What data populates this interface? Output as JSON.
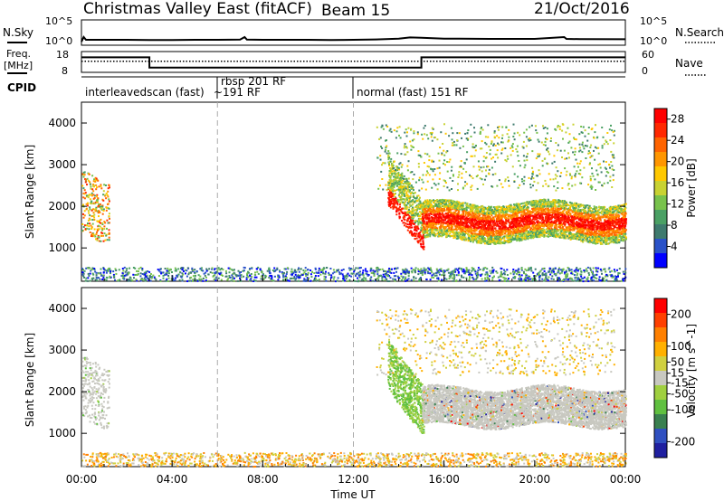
{
  "header": {
    "title": "Christmas Valley East (fitACF)",
    "beam": "Beam 15",
    "date": "21/Oct/2016"
  },
  "top_panels": {
    "nsky_label": "N.Sky",
    "nsearch_label": "N.Search",
    "nsky_ticks": [
      "10^5",
      "10^0"
    ],
    "nsearch_ticks": [
      "10^5",
      "10^0"
    ],
    "freq_label_1": "Freq.",
    "freq_label_2": "[MHz]",
    "freq_ticks": [
      "18",
      "8"
    ],
    "nave_label": "Nave",
    "nave_ticks": [
      "60",
      "0"
    ],
    "cpid_label": "CPID"
  },
  "cpid_segments": [
    {
      "label": "interleavedscan (fast)"
    },
    {
      "label": "rbsp 201 RF"
    },
    {
      "label": "~191 RF"
    },
    {
      "label": "normal (fast) 151 RF"
    }
  ],
  "colors": {
    "power": [
      "#0000ff",
      "#2a52c8",
      "#3e7a6e",
      "#4aa064",
      "#78c24c",
      "#c8d232",
      "#ffc800",
      "#ff9600",
      "#ff6400",
      "#ff2800",
      "#ff0000"
    ],
    "velocity": [
      "#2020a0",
      "#3050c0",
      "#3a8050",
      "#60c040",
      "#a0d040",
      "#c8c8c0",
      "#d0d040",
      "#ffb000",
      "#ff8000",
      "#ff4000",
      "#ff0000"
    ]
  },
  "chart_data": [
    {
      "type": "line",
      "title": "N.Sky / N.Search",
      "ylabel": "N.Sky",
      "y2label": "N.Search",
      "yscale": "log",
      "ylim": [
        1,
        100000
      ],
      "x_hours": [
        0,
        0.1,
        0.2,
        1,
        2,
        3,
        4,
        5,
        6,
        7,
        7.2,
        7.3,
        8,
        9,
        10,
        11,
        12,
        13,
        14,
        14.5,
        15,
        15.5,
        16,
        18,
        20,
        21.3,
        21.4,
        22,
        24
      ],
      "series": [
        {
          "values": [
            5,
            40,
            12,
            12,
            12,
            11,
            11,
            12,
            12,
            13,
            40,
            13,
            12,
            12,
            12,
            11,
            12,
            14,
            20,
            35,
            30,
            25,
            20,
            18,
            18,
            40,
            18,
            16,
            15
          ]
        }
      ]
    },
    {
      "type": "line",
      "ylabel": "Freq. [MHz]",
      "y2label": "Nave",
      "ylim": [
        8,
        18
      ],
      "y2lim": [
        0,
        60
      ],
      "x_hours": [
        0,
        3,
        3,
        15,
        15,
        24
      ],
      "series": [
        {
          "values": [
            15.2,
            15.2,
            10.3,
            10.3,
            15.2,
            15.2
          ]
        }
      ],
      "series2": [
        {
          "values": [
            32,
            32,
            32,
            32,
            32,
            32
          ]
        }
      ]
    },
    {
      "type": "heatmap",
      "ylabel": "Slant Range [km]",
      "colorbar_label": "Power [dB]",
      "colorbar_ticks": [
        "28",
        "24",
        "20",
        "16",
        "12",
        "8",
        "4"
      ],
      "colorbar_range": [
        0,
        30
      ],
      "xlim": [
        0,
        24
      ],
      "ylim": [
        200,
        4500
      ],
      "x_ticks": [
        "00:00",
        "04:00",
        "08:00",
        "12:00",
        "16:00",
        "20:00",
        "00:00"
      ],
      "y_ticks": [
        "4000",
        "3000",
        "2000",
        "1000"
      ]
    },
    {
      "type": "heatmap",
      "xlabel": "Time UT",
      "ylabel": "Slant Range [km]",
      "colorbar_label": "Velocity [m s^-1]",
      "colorbar_ticks": [
        "200",
        "100",
        "50",
        "15",
        "-15",
        "-50",
        "-100",
        "-200"
      ],
      "colorbar_range": [
        -250,
        250
      ],
      "xlim": [
        0,
        24
      ],
      "ylim": [
        200,
        4500
      ],
      "x_ticks": [
        "00:00",
        "04:00",
        "08:00",
        "12:00",
        "16:00",
        "20:00",
        "00:00"
      ],
      "y_ticks": [
        "4000",
        "3000",
        "2000",
        "1000"
      ]
    }
  ]
}
